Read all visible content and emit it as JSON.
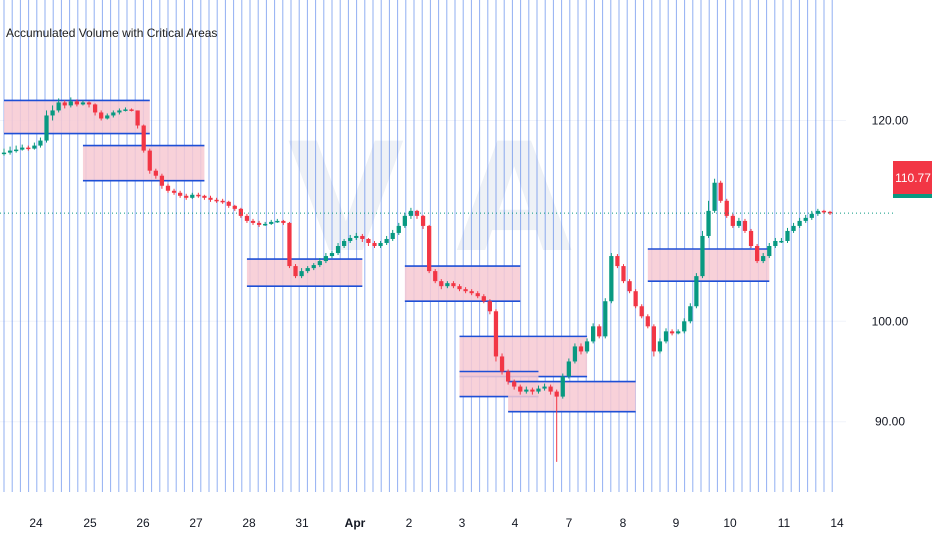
{
  "indicator_title": "Accumulated Volume with Critical Areas",
  "current_price_label": "110.77",
  "colors": {
    "up": "#089981",
    "down": "#f23645",
    "session_line": "#3a6ee8",
    "zone_fill": "#f7c9d2",
    "zone_border": "#1e4fd6",
    "price_line": "#089981",
    "watermark": "#eef1f6"
  },
  "chart_data": {
    "type": "candlestick",
    "title": "Accumulated Volume with Critical Areas",
    "y_axis": {
      "ticks": [
        90,
        100,
        120
      ],
      "tick_labels": [
        "90.00",
        "100.00",
        "120.00"
      ],
      "ylim": [
        83,
        132
      ]
    },
    "x_axis": {
      "tick_labels": [
        "24",
        "25",
        "26",
        "27",
        "28",
        "31",
        "Apr",
        "2",
        "3",
        "4",
        "7",
        "8",
        "9",
        "10",
        "11",
        "14"
      ]
    },
    "last_price": 110.77,
    "candles": [
      [
        116.8,
        116.8,
        117.2,
        116.5
      ],
      [
        116.8,
        117.0,
        117.4,
        116.6
      ],
      [
        117.0,
        117.1,
        117.5,
        116.8
      ],
      [
        117.1,
        117.3,
        117.6,
        117.0
      ],
      [
        117.3,
        117.2,
        117.5,
        117.0
      ],
      [
        117.2,
        117.5,
        117.8,
        117.1
      ],
      [
        117.5,
        118.0,
        118.3,
        117.3
      ],
      [
        118.0,
        120.5,
        121.0,
        117.8
      ],
      [
        120.5,
        121.0,
        121.5,
        120.0
      ],
      [
        121.0,
        121.8,
        122.2,
        120.8
      ],
      [
        121.8,
        121.5,
        122.0,
        121.2
      ],
      [
        121.5,
        121.9,
        122.3,
        121.3
      ],
      [
        121.9,
        121.6,
        122.1,
        121.4
      ],
      [
        121.6,
        121.8,
        122.0,
        121.5
      ],
      [
        121.8,
        121.6,
        121.9,
        121.3
      ],
      [
        121.6,
        120.8,
        121.7,
        120.5
      ],
      [
        120.8,
        120.2,
        121.0,
        120.0
      ],
      [
        120.2,
        120.5,
        120.7,
        120.1
      ],
      [
        120.5,
        120.8,
        121.0,
        120.3
      ],
      [
        120.8,
        121.0,
        121.2,
        120.6
      ],
      [
        121.0,
        121.1,
        121.3,
        120.9
      ],
      [
        121.1,
        121.0,
        121.2,
        120.9
      ],
      [
        121.0,
        119.5,
        121.0,
        119.2
      ],
      [
        119.5,
        117.0,
        119.6,
        116.8
      ],
      [
        117.0,
        115.0,
        117.2,
        114.7
      ],
      [
        115.0,
        114.5,
        115.2,
        114.2
      ],
      [
        114.5,
        113.5,
        114.7,
        113.2
      ],
      [
        113.5,
        113.0,
        113.7,
        112.8
      ],
      [
        113.0,
        112.8,
        113.2,
        112.6
      ],
      [
        112.8,
        112.5,
        113.0,
        112.3
      ],
      [
        112.5,
        112.3,
        112.7,
        112.1
      ],
      [
        112.3,
        112.6,
        112.8,
        112.2
      ],
      [
        112.6,
        112.5,
        112.8,
        112.3
      ],
      [
        112.5,
        112.3,
        112.6,
        112.1
      ],
      [
        112.3,
        112.1,
        112.5,
        111.9
      ],
      [
        112.1,
        112.0,
        112.3,
        111.8
      ],
      [
        112.0,
        111.9,
        112.2,
        111.7
      ],
      [
        111.9,
        111.5,
        112.0,
        111.3
      ],
      [
        111.5,
        111.2,
        111.6,
        111.0
      ],
      [
        111.2,
        110.5,
        111.3,
        110.3
      ],
      [
        110.5,
        110.0,
        110.7,
        109.8
      ],
      [
        110.0,
        109.8,
        110.2,
        109.6
      ],
      [
        109.8,
        109.6,
        110.0,
        109.4
      ],
      [
        109.6,
        109.7,
        109.9,
        109.5
      ],
      [
        109.7,
        109.9,
        110.1,
        109.6
      ],
      [
        109.9,
        110.0,
        110.2,
        109.8
      ],
      [
        110.0,
        109.8,
        110.1,
        109.6
      ],
      [
        109.8,
        105.5,
        109.9,
        105.3
      ],
      [
        105.5,
        104.5,
        105.7,
        104.3
      ],
      [
        104.5,
        105.0,
        105.3,
        104.3
      ],
      [
        105.0,
        105.3,
        105.5,
        104.8
      ],
      [
        105.3,
        105.6,
        105.8,
        105.1
      ],
      [
        105.6,
        106.0,
        106.3,
        105.4
      ],
      [
        106.0,
        106.5,
        106.8,
        105.8
      ],
      [
        106.5,
        106.8,
        107.0,
        106.3
      ],
      [
        106.8,
        107.5,
        107.8,
        106.6
      ],
      [
        107.5,
        108.0,
        108.2,
        107.3
      ],
      [
        108.0,
        108.3,
        108.6,
        107.8
      ],
      [
        108.3,
        108.5,
        108.8,
        108.1
      ],
      [
        108.5,
        108.2,
        108.7,
        107.9
      ],
      [
        108.2,
        107.8,
        108.3,
        107.5
      ],
      [
        107.8,
        107.5,
        108.0,
        107.3
      ],
      [
        107.5,
        107.8,
        108.0,
        107.3
      ],
      [
        107.8,
        108.2,
        108.5,
        107.6
      ],
      [
        108.2,
        108.8,
        109.1,
        108.0
      ],
      [
        108.8,
        109.5,
        109.8,
        108.6
      ],
      [
        109.5,
        110.5,
        110.8,
        109.3
      ],
      [
        110.5,
        111.0,
        111.3,
        110.2
      ],
      [
        111.0,
        110.5,
        111.1,
        110.2
      ],
      [
        110.5,
        109.5,
        110.6,
        109.2
      ],
      [
        109.5,
        105.0,
        109.6,
        104.8
      ],
      [
        105.0,
        104.0,
        105.2,
        103.8
      ],
      [
        104.0,
        103.5,
        104.2,
        103.2
      ],
      [
        103.5,
        103.8,
        104.0,
        103.3
      ],
      [
        103.8,
        103.5,
        104.0,
        103.3
      ],
      [
        103.5,
        103.2,
        103.7,
        103.0
      ],
      [
        103.2,
        103.0,
        103.4,
        102.8
      ],
      [
        103.0,
        102.8,
        103.2,
        102.6
      ],
      [
        102.8,
        102.5,
        103.0,
        102.3
      ],
      [
        102.5,
        102.0,
        102.7,
        101.8
      ],
      [
        102.0,
        101.0,
        102.2,
        100.7
      ],
      [
        101.0,
        96.5,
        101.2,
        96.0
      ],
      [
        96.5,
        95.0,
        96.8,
        94.7
      ],
      [
        95.0,
        94.0,
        95.2,
        93.7
      ],
      [
        94.0,
        93.5,
        94.2,
        93.2
      ],
      [
        93.5,
        93.0,
        93.7,
        92.7
      ],
      [
        93.0,
        93.2,
        93.5,
        92.8
      ],
      [
        93.2,
        93.0,
        93.4,
        92.7
      ],
      [
        93.0,
        93.3,
        93.6,
        92.8
      ],
      [
        93.3,
        93.5,
        93.8,
        93.1
      ],
      [
        93.5,
        93.0,
        93.7,
        92.7
      ],
      [
        93.0,
        92.5,
        93.2,
        86.0
      ],
      [
        92.5,
        94.5,
        94.8,
        92.3
      ],
      [
        94.5,
        96.0,
        96.3,
        94.3
      ],
      [
        96.0,
        97.5,
        97.8,
        95.8
      ],
      [
        97.5,
        97.0,
        97.8,
        96.7
      ],
      [
        97.0,
        98.0,
        98.3,
        96.8
      ],
      [
        98.0,
        99.5,
        99.8,
        97.8
      ],
      [
        99.5,
        98.5,
        99.7,
        98.3
      ],
      [
        98.5,
        102.0,
        102.3,
        98.3
      ],
      [
        102.0,
        106.5,
        106.8,
        101.8
      ],
      [
        106.5,
        105.5,
        106.7,
        105.3
      ],
      [
        105.5,
        104.0,
        105.7,
        103.8
      ],
      [
        104.0,
        103.0,
        104.2,
        102.8
      ],
      [
        103.0,
        101.5,
        103.2,
        101.3
      ],
      [
        101.5,
        100.5,
        101.7,
        100.3
      ],
      [
        100.5,
        99.5,
        100.7,
        99.3
      ],
      [
        99.5,
        97.0,
        99.7,
        96.5
      ],
      [
        97.0,
        98.0,
        98.3,
        96.8
      ],
      [
        98.0,
        99.0,
        99.3,
        97.8
      ],
      [
        99.0,
        98.8,
        99.2,
        98.6
      ],
      [
        98.8,
        99.0,
        99.2,
        98.7
      ],
      [
        99.0,
        100.0,
        100.3,
        98.8
      ],
      [
        100.0,
        101.5,
        101.8,
        99.8
      ],
      [
        101.5,
        104.5,
        104.8,
        101.3
      ],
      [
        104.5,
        108.5,
        109.0,
        104.3
      ],
      [
        108.5,
        111.0,
        112.0,
        108.3
      ],
      [
        111.0,
        113.8,
        114.2,
        110.8
      ],
      [
        113.8,
        112.0,
        114.0,
        111.8
      ],
      [
        112.0,
        110.5,
        112.2,
        110.3
      ],
      [
        110.5,
        109.5,
        110.7,
        109.3
      ],
      [
        109.5,
        110.0,
        110.3,
        109.3
      ],
      [
        110.0,
        109.0,
        110.2,
        108.8
      ],
      [
        109.0,
        107.5,
        109.2,
        107.3
      ],
      [
        107.5,
        106.0,
        107.7,
        105.8
      ],
      [
        106.0,
        106.5,
        106.8,
        105.8
      ],
      [
        106.5,
        107.5,
        107.8,
        106.3
      ],
      [
        107.5,
        108.0,
        108.3,
        107.3
      ],
      [
        108.0,
        108.0,
        108.3,
        107.8
      ],
      [
        108.0,
        109.0,
        109.3,
        107.8
      ],
      [
        109.0,
        109.5,
        109.8,
        108.8
      ],
      [
        109.5,
        110.0,
        110.3,
        109.3
      ],
      [
        110.0,
        110.3,
        110.6,
        109.8
      ],
      [
        110.3,
        110.7,
        111.0,
        110.1
      ],
      [
        110.7,
        111.0,
        111.2,
        110.5
      ],
      [
        111.0,
        110.9,
        111.1,
        110.7
      ],
      [
        110.9,
        110.77,
        111.0,
        110.6
      ]
    ],
    "critical_zones": [
      {
        "start": 0,
        "end": 24,
        "low": 118.7,
        "high": 122.0
      },
      {
        "start": 13,
        "end": 33,
        "low": 114.0,
        "high": 117.5
      },
      {
        "start": 40,
        "end": 59,
        "low": 103.5,
        "high": 106.2
      },
      {
        "start": 66,
        "end": 85,
        "low": 102.0,
        "high": 105.5
      },
      {
        "start": 75,
        "end": 96,
        "low": 94.5,
        "high": 98.5
      },
      {
        "start": 75,
        "end": 88,
        "low": 92.5,
        "high": 95.0
      },
      {
        "start": 83,
        "end": 104,
        "low": 91.0,
        "high": 94.0
      },
      {
        "start": 106,
        "end": 126,
        "low": 104.0,
        "high": 107.2
      }
    ]
  }
}
